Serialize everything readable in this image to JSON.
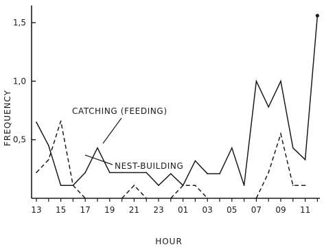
{
  "chart_data": {
    "type": "line",
    "xlabel": "HOUR",
    "ylabel": "FREQUENCY",
    "ylim": [
      0,
      1.75
    ],
    "grid": false,
    "x_tick_labels": [
      "13",
      "15",
      "17",
      "19",
      "21",
      "23",
      "01",
      "03",
      "05",
      "07",
      "09",
      "11"
    ],
    "y_ticks": [
      0.5,
      1.0,
      1.5
    ],
    "y_tick_labels": [
      "0,5",
      "1,0",
      "1,5"
    ],
    "x_positions": [
      13,
      14,
      15,
      16,
      17,
      18,
      19,
      20,
      21,
      22,
      23,
      24,
      25,
      26,
      27,
      28,
      29,
      30,
      31,
      32,
      33,
      34,
      35,
      36
    ],
    "series": [
      {
        "name": "CATCHING (FEEDING)",
        "style": "solid",
        "color": "#1a1a1a",
        "values": [
          0.65,
          0.45,
          0.11,
          0.11,
          0.22,
          0.43,
          0.22,
          0.22,
          0.22,
          0.22,
          0.11,
          0.21,
          0.11,
          0.32,
          0.21,
          0.21,
          0.43,
          0.11,
          1.0,
          0.78,
          1.0,
          0.43,
          0.33,
          1.56
        ]
      },
      {
        "name": "NEST-BUILDING",
        "style": "dashed",
        "color": "#1a1a1a",
        "values": [
          0.22,
          0.33,
          0.66,
          0.11,
          0.0,
          null,
          null,
          0.0,
          0.11,
          0.0,
          null,
          0.0,
          0.11,
          0.11,
          0.0,
          null,
          null,
          null,
          0.0,
          0.22,
          0.55,
          0.11,
          0.11,
          null
        ]
      }
    ],
    "annotations": [
      {
        "text": "CATCHING (FEEDING)",
        "series": "CATCHING (FEEDING)"
      },
      {
        "text": "NEST-BUILDING",
        "series": "NEST-BUILDING"
      }
    ]
  }
}
